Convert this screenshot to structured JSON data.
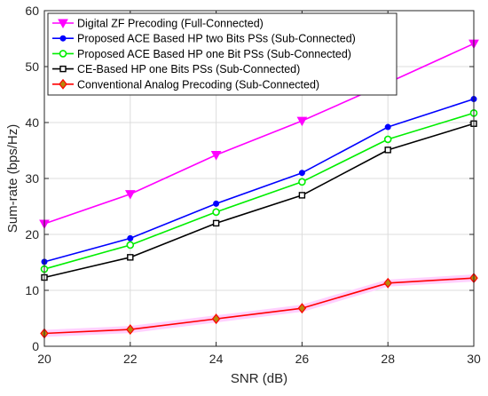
{
  "chart_data": {
    "type": "line",
    "title": "",
    "xlabel": "SNR (dB)",
    "ylabel": "Sum-rate (bps/Hz)",
    "xlim": [
      20,
      30
    ],
    "ylim": [
      0,
      60
    ],
    "xticks": [
      20,
      22,
      24,
      26,
      28,
      30
    ],
    "yticks": [
      0,
      10,
      20,
      30,
      40,
      50,
      60
    ],
    "grid": true,
    "legend_position": "top-left",
    "x": [
      20,
      22,
      24,
      26,
      28,
      30
    ],
    "series": [
      {
        "name": "Digital ZF Precoding (Full-Connected)",
        "color": "#ff00ff",
        "marker": "triangle-down",
        "values": [
          21.9,
          27.2,
          34.2,
          40.3,
          47.1,
          54.1
        ]
      },
      {
        "name": "Proposed ACE Based HP two Bits PSs (Sub-Connected)",
        "color": "#0000ff",
        "marker": "dot",
        "values": [
          15.1,
          19.3,
          25.5,
          31.0,
          39.2,
          44.2
        ]
      },
      {
        "name": "Proposed ACE Based HP one Bit PSs (Sub-Connected)",
        "color": "#00ee00",
        "marker": "circle",
        "values": [
          13.8,
          18.1,
          24.0,
          29.4,
          37.0,
          41.7
        ]
      },
      {
        "name": "CE-Based HP one Bits PSs (Sub-Connected)",
        "color": "#000000",
        "marker": "square",
        "values": [
          12.3,
          15.9,
          22.0,
          27.0,
          35.1,
          39.8
        ]
      },
      {
        "name": "Conventional Analog Precoding (Sub-Connected)",
        "color": "#ff0000",
        "marker": "diamond",
        "values": [
          2.3,
          3.0,
          4.9,
          6.8,
          11.3,
          12.2
        ]
      }
    ]
  }
}
